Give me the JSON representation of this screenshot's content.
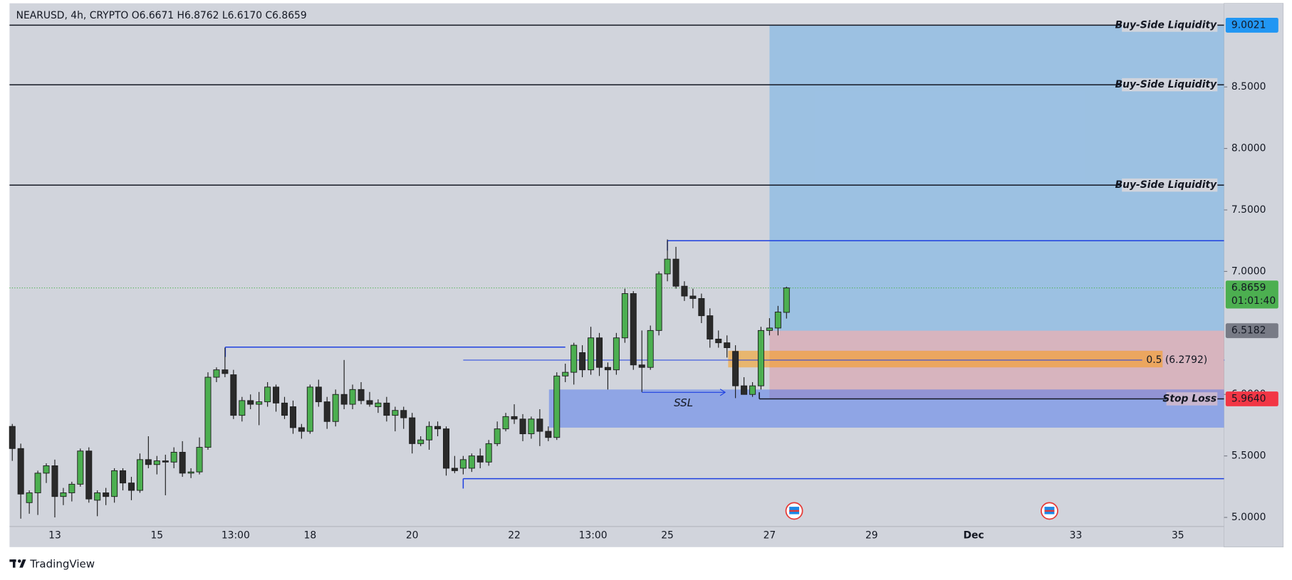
{
  "header": {
    "legend": "NEARUSD, 4h, CRYPTO  O6.6671  H6.8762  L6.6170  C6.8659",
    "brand": "TradingView"
  },
  "chart_data": {
    "type": "candlestick",
    "x": [
      12.167,
      12.333,
      12.5,
      12.667,
      12.833,
      13,
      13.167,
      13.333,
      13.5,
      13.667,
      13.833,
      14,
      14.167,
      14.333,
      14.5,
      14.667,
      14.833,
      15,
      15.167,
      15.333,
      15.5,
      15.667,
      15.833,
      16,
      16.167,
      16.333,
      16.5,
      16.667,
      16.833,
      17,
      17.167,
      17.333,
      17.5,
      17.667,
      17.833,
      18,
      18.167,
      18.333,
      18.5,
      18.667,
      18.833,
      19,
      19.167,
      19.333,
      19.5,
      19.667,
      19.833,
      20,
      20.167,
      20.333,
      20.5,
      20.667,
      20.833,
      21,
      21.167,
      21.333,
      21.5,
      21.667,
      21.833,
      22,
      22.167,
      22.333,
      22.5,
      22.667,
      22.833,
      23,
      23.167,
      23.333,
      23.5,
      23.667,
      23.833,
      24,
      24.167,
      24.333,
      24.5,
      24.667,
      24.833,
      25,
      25.167,
      25.333,
      25.5,
      25.667,
      25.833,
      26,
      26.167,
      26.333,
      26.5,
      26.667,
      26.833,
      27,
      27.167,
      27.333
    ],
    "open": [
      5.74,
      5.56,
      5.12,
      5.2,
      5.36,
      5.42,
      5.17,
      5.2,
      5.27,
      5.54,
      5.14,
      5.2,
      5.17,
      5.38,
      5.28,
      5.22,
      5.47,
      5.43,
      5.46,
      5.45,
      5.53,
      5.36,
      5.37,
      5.57,
      6.14,
      6.2,
      6.16,
      5.83,
      5.95,
      5.92,
      5.94,
      6.06,
      5.93,
      5.9,
      5.73,
      5.7,
      6.06,
      5.94,
      5.78,
      6,
      5.92,
      6.04,
      5.95,
      5.9,
      5.93,
      5.83,
      5.87,
      5.81,
      5.6,
      5.63,
      5.74,
      5.72,
      5.4,
      5.4,
      5.4,
      5.5,
      5.45,
      5.6,
      5.72,
      5.82,
      5.8,
      5.68,
      5.8,
      5.7,
      5.65,
      6.15,
      6.18,
      6.34,
      6.2,
      6.46,
      6.22,
      6.2,
      6.46,
      6.82,
      6.24,
      6.22,
      6.52,
      6.98,
      7.1,
      6.88,
      6.8,
      6.78,
      6.64,
      6.45,
      6.42,
      6.35,
      6.07,
      6,
      6.07,
      6.52,
      6.54,
      6.6671
    ],
    "high": [
      5.76,
      5.6,
      5.22,
      5.38,
      5.44,
      5.47,
      5.24,
      5.29,
      5.56,
      5.57,
      5.22,
      5.24,
      5.4,
      5.4,
      5.33,
      5.52,
      5.66,
      5.5,
      5.51,
      5.57,
      5.62,
      5.4,
      5.65,
      6.18,
      6.22,
      6.38,
      6.2,
      5.98,
      6,
      6.02,
      6.1,
      6.08,
      5.98,
      5.95,
      5.76,
      6.08,
      6.12,
      5.98,
      6.04,
      6.28,
      6.08,
      6.1,
      6.02,
      5.96,
      5.98,
      5.9,
      5.9,
      5.85,
      5.66,
      5.78,
      5.78,
      5.74,
      5.5,
      5.5,
      5.52,
      5.56,
      5.63,
      5.78,
      5.85,
      5.92,
      5.84,
      5.82,
      5.88,
      5.74,
      6.18,
      6.25,
      6.42,
      6.4,
      6.55,
      6.5,
      6.26,
      6.5,
      6.86,
      6.84,
      6.52,
      6.56,
      7,
      7.26,
      7.2,
      6.92,
      6.86,
      6.82,
      6.7,
      6.52,
      6.48,
      6.4,
      6.14,
      6.1,
      6.55,
      6.62,
      6.72,
      6.8762
    ],
    "low": [
      5.46,
      4.99,
      5.03,
      5.02,
      5.28,
      5,
      5.1,
      5.13,
      5.25,
      5.12,
      5.01,
      5.1,
      5.12,
      5.22,
      5.14,
      5.2,
      5.4,
      5.35,
      5.18,
      5.4,
      5.33,
      5.32,
      5.35,
      5.55,
      6.1,
      6.14,
      5.8,
      5.78,
      5.88,
      5.75,
      5.9,
      5.86,
      5.8,
      5.68,
      5.64,
      5.68,
      5.9,
      5.72,
      5.74,
      5.88,
      5.88,
      5.92,
      5.9,
      5.85,
      5.78,
      5.7,
      5.72,
      5.52,
      5.58,
      5.55,
      5.66,
      5.34,
      5.36,
      5.35,
      5.37,
      5.4,
      5.42,
      5.58,
      5.7,
      5.76,
      5.62,
      5.64,
      5.58,
      5.62,
      5.63,
      6.1,
      6.08,
      6.14,
      6.16,
      6.15,
      6.04,
      6.16,
      6.42,
      6.2,
      6.02,
      6.2,
      6.48,
      6.92,
      6.86,
      6.76,
      6.7,
      6.58,
      6.38,
      6.38,
      6.3,
      5.97,
      6,
      5.98,
      6.04,
      6.48,
      6.48,
      6.617
    ],
    "close": [
      5.56,
      5.19,
      5.2,
      5.36,
      5.42,
      5.17,
      5.2,
      5.27,
      5.54,
      5.15,
      5.2,
      5.17,
      5.38,
      5.28,
      5.22,
      5.47,
      5.43,
      5.46,
      5.45,
      5.53,
      5.36,
      5.37,
      5.57,
      6.14,
      6.2,
      6.17,
      5.83,
      5.95,
      5.92,
      5.94,
      6.06,
      5.93,
      5.83,
      5.73,
      5.7,
      6.06,
      5.94,
      5.78,
      6,
      5.92,
      6.04,
      5.95,
      5.92,
      5.93,
      5.83,
      5.87,
      5.81,
      5.6,
      5.63,
      5.74,
      5.72,
      5.4,
      5.38,
      5.47,
      5.5,
      5.45,
      5.6,
      5.72,
      5.82,
      5.8,
      5.68,
      5.8,
      5.7,
      5.65,
      6.15,
      6.18,
      6.4,
      6.2,
      6.46,
      6.22,
      6.2,
      6.46,
      6.82,
      6.24,
      6.22,
      6.52,
      6.98,
      7.1,
      6.88,
      6.8,
      6.78,
      6.64,
      6.45,
      6.42,
      6.38,
      6.07,
      6,
      6.07,
      6.52,
      6.54,
      6.67,
      6.8659
    ],
    "colors": {
      "up": "#4caf50",
      "down": "#2a2a2a",
      "outline": "#1e1e1e"
    },
    "xlim": [
      12.113,
      35.903
    ],
    "xticks": [
      13,
      15,
      {
        "value": 16.542,
        "label": "13:00"
      },
      18,
      20,
      22,
      {
        "value": 23.542,
        "label": "13:00"
      },
      25,
      27,
      29,
      {
        "value": 31,
        "label": "Dec"
      },
      33,
      35
    ],
    "ylim": [
      4.926,
      9.207
    ],
    "yticks": [
      {
        "value": 5,
        "label": "5.0000"
      },
      {
        "value": 5.5,
        "label": "5.5000"
      },
      {
        "value": 6,
        "label": "6.0000"
      },
      {
        "value": 7,
        "label": "7.0000"
      },
      {
        "value": 7.5,
        "label": "7.5000"
      },
      {
        "value": 8,
        "label": "8.0000"
      },
      {
        "value": 8.5,
        "label": "8.5000"
      }
    ],
    "last_price": {
      "value": 6.8659,
      "countdown": "01:01:40",
      "color": "#4caf50"
    },
    "liquidity_lines": [
      {
        "label": "Buy-Side Liquidity",
        "y": 9.0021
      },
      {
        "label": "Buy-Side Liquidity",
        "y": 8.518
      },
      {
        "label": "Buy-Side Liquidity",
        "y": 7.702
      }
    ],
    "structure_lines": [
      {
        "y": 7.25,
        "x": [
          25.0,
          35.903
        ]
      },
      {
        "y": 6.385,
        "x": [
          16.34,
          23.0
        ]
      },
      {
        "y": 5.315,
        "x": [
          21.0,
          35.903
        ]
      }
    ],
    "position": {
      "x": [
        27.0,
        35.903
      ],
      "target": 9.0021,
      "entry": 6.5182,
      "stop": {
        "value": 5.964,
        "label": "5.9640"
      },
      "stop_label": "Stop Loss",
      "stop_x": 26.8,
      "target_color": "#2196f3",
      "entry_color": "#787b86",
      "stop_color": "#f23645"
    },
    "demand_zone": {
      "x": [
        22.68,
        35.903
      ],
      "y": [
        5.73,
        6.04
      ]
    },
    "fvg": {
      "x": [
        26.19,
        34.7
      ],
      "y": [
        6.22,
        6.355
      ]
    },
    "fib": {
      "label": "0.5 (6.2792)",
      "y": 6.2792,
      "x": [
        21.0,
        34.3
      ]
    },
    "ssl": {
      "label": "SSL",
      "y": 6.017,
      "x": [
        24.5,
        26.13
      ]
    }
  }
}
